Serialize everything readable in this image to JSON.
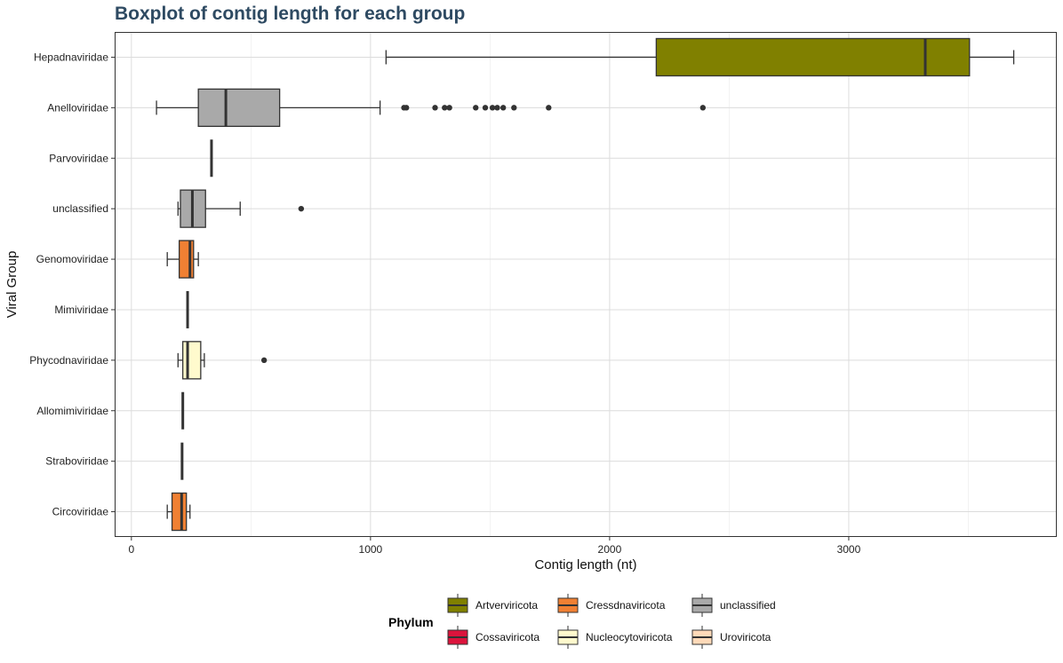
{
  "chart_data": {
    "type": "boxplot",
    "orientation": "horizontal",
    "title": "Boxplot of contig length for each group",
    "xlabel": "Contig length (nt)",
    "ylabel": "Viral Group",
    "xlim": [
      -70,
      3870
    ],
    "xticks": [
      0,
      1000,
      2000,
      3000
    ],
    "grid": true,
    "legend": {
      "title": "Phylum",
      "position": "bottom",
      "entries": [
        {
          "name": "Artverviricota",
          "color": "#808000"
        },
        {
          "name": "Cressdnaviricota",
          "color": "#f08033"
        },
        {
          "name": "unclassified",
          "color": "#a9a9a9"
        },
        {
          "name": "Cossaviricota",
          "color": "#dc143c"
        },
        {
          "name": "Nucleocytoviricota",
          "color": "#fffacd"
        },
        {
          "name": "Uroviricota",
          "color": "#ffdab9"
        }
      ]
    },
    "groups": [
      {
        "name": "Hepadnaviridae",
        "phylum": "Artverviricota",
        "min": 1065,
        "q1": 2195,
        "median": 3320,
        "q3": 3505,
        "max": 3690,
        "outliers": []
      },
      {
        "name": "Anelloviridae",
        "phylum": "unclassified",
        "min": 105,
        "q1": 280,
        "median": 395,
        "q3": 620,
        "max": 1040,
        "outliers": [
          1140,
          1150,
          1270,
          1310,
          1330,
          1440,
          1480,
          1510,
          1530,
          1555,
          1600,
          1745,
          2390
        ]
      },
      {
        "name": "Parvoviridae",
        "phylum": "unclassified",
        "min": 335,
        "q1": 335,
        "median": 335,
        "q3": 335,
        "max": 335,
        "outliers": []
      },
      {
        "name": "unclassified",
        "phylum": "unclassified",
        "min": 195,
        "q1": 205,
        "median": 255,
        "q3": 310,
        "max": 455,
        "outliers": [
          710
        ]
      },
      {
        "name": "Genomoviridae",
        "phylum": "Cressdnaviricota",
        "min": 150,
        "q1": 200,
        "median": 245,
        "q3": 260,
        "max": 280,
        "outliers": []
      },
      {
        "name": "Mimiviridae",
        "phylum": "Nucleocytoviricota",
        "min": 235,
        "q1": 235,
        "median": 235,
        "q3": 235,
        "max": 235,
        "outliers": []
      },
      {
        "name": "Phycodnaviridae",
        "phylum": "Nucleocytoviricota",
        "min": 195,
        "q1": 215,
        "median": 235,
        "q3": 290,
        "max": 305,
        "outliers": [
          555
        ]
      },
      {
        "name": "Allomimiviridae",
        "phylum": "Nucleocytoviricota",
        "min": 215,
        "q1": 215,
        "median": 215,
        "q3": 215,
        "max": 215,
        "outliers": []
      },
      {
        "name": "Straboviridae",
        "phylum": "Uroviricota",
        "min": 212,
        "q1": 212,
        "median": 212,
        "q3": 212,
        "max": 212,
        "outliers": []
      },
      {
        "name": "Circoviridae",
        "phylum": "Cressdnaviricota",
        "min": 150,
        "q1": 170,
        "median": 210,
        "q3": 230,
        "max": 245,
        "outliers": []
      }
    ]
  }
}
